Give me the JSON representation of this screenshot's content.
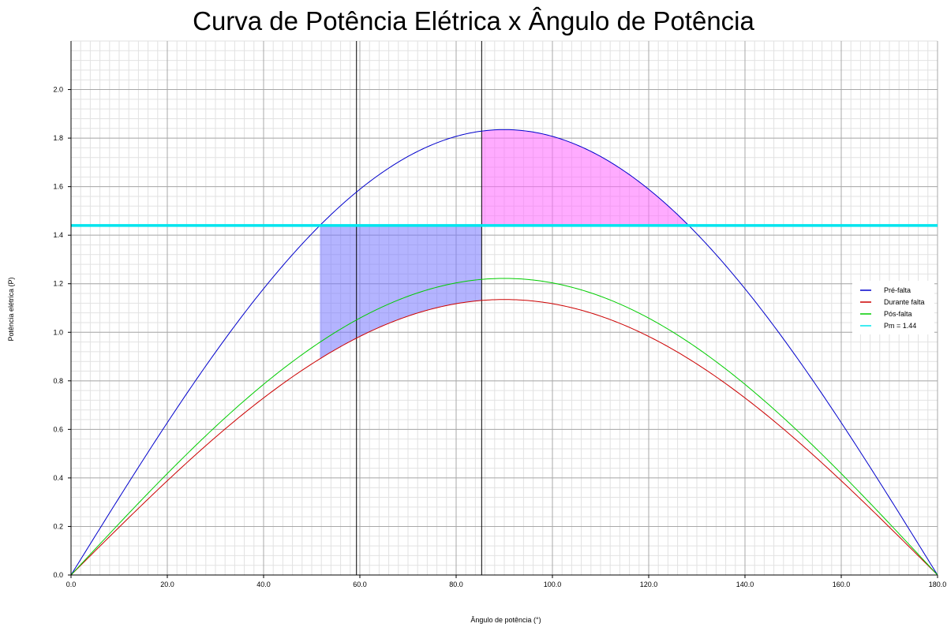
{
  "chart_data": {
    "type": "line",
    "title": "Curva de Potência Elétrica x Ângulo de Potência",
    "xlabel": "Ângulo de potência (°)",
    "ylabel": "Potência elétrica (P)",
    "xlim": [
      0,
      180
    ],
    "ylim": [
      0,
      2.2
    ],
    "x_ticks": [
      0,
      20,
      40,
      60,
      80,
      100,
      120,
      140,
      160,
      180
    ],
    "x_tick_labels": [
      "0.0",
      "20.0",
      "40.0",
      "60.0",
      "80.0",
      "100.0",
      "120.0",
      "140.0",
      "160.0",
      "180.0"
    ],
    "y_ticks": [
      0,
      0.2,
      0.4,
      0.6,
      0.8,
      1.0,
      1.2,
      1.4,
      1.6,
      1.8,
      2.0
    ],
    "y_tick_labels": [
      "0.0",
      "0.2",
      "0.4",
      "0.6",
      "0.8",
      "1.0",
      "1.2",
      "1.4",
      "1.6",
      "1.8",
      "2.0"
    ],
    "grid": true,
    "legend_position": "right",
    "series": [
      {
        "name": "Pré-falta",
        "color": "#0000cc",
        "shape": "sine",
        "amplitude": 1.835,
        "x_range": [
          0,
          180
        ]
      },
      {
        "name": "Durante falta",
        "color": "#cc0000",
        "shape": "sine",
        "amplitude": 1.135,
        "x_range": [
          0,
          180
        ]
      },
      {
        "name": "Pós-falta",
        "color": "#00cc00",
        "shape": "sine",
        "amplitude": 1.222,
        "x_range": [
          0,
          180
        ]
      },
      {
        "name": "Pm = 1.44",
        "color": "#00e5ee",
        "shape": "constant",
        "value": 1.44
      }
    ],
    "vertical_lines": [
      59.3,
      85.3
    ],
    "areas": [
      {
        "label": "acceleration",
        "color": "#7777ff",
        "from_x": 51.7,
        "to_x": 85.3,
        "lower_series": 1,
        "upper": 1.44
      },
      {
        "label": "deceleration",
        "color": "#ff66ff",
        "from_x": 85.3,
        "to_x": 128.3,
        "lower": 1.44,
        "upper_series": 0
      }
    ]
  }
}
